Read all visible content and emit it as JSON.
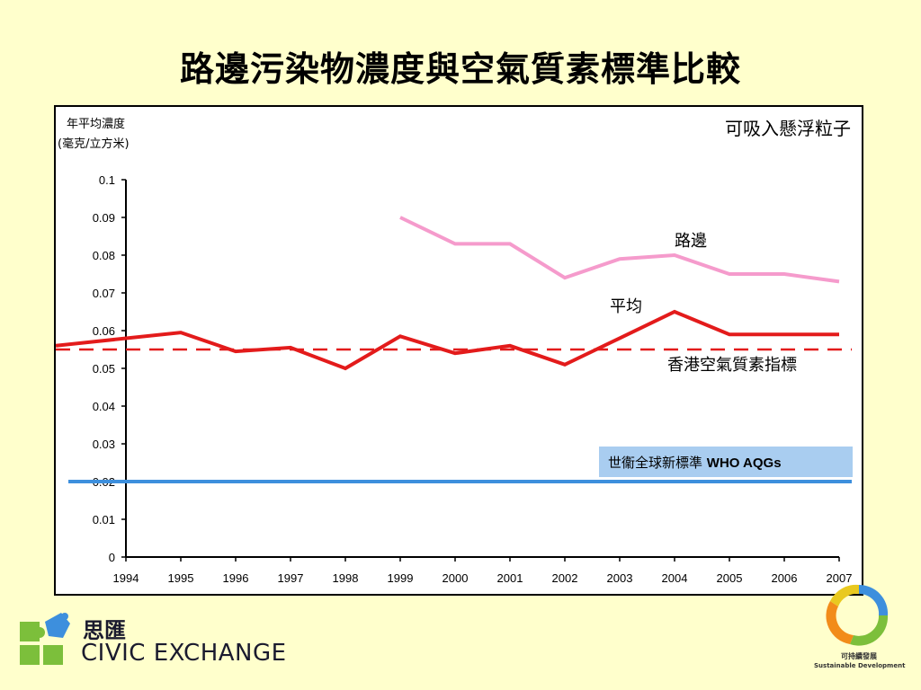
{
  "slide_title": "路邊污染物濃度與空氣質素標準比較",
  "chart_data": {
    "type": "line",
    "pollutant_label": "可吸入懸浮粒子",
    "ylabel_line1": "年平均濃度",
    "ylabel_line2": "(毫克/立方米)",
    "xlabel": "",
    "x": [
      "1994",
      "1995",
      "1996",
      "1997",
      "1998",
      "1999",
      "2000",
      "2001",
      "2002",
      "2003",
      "2004",
      "2005",
      "2006",
      "2007"
    ],
    "ylim": [
      0,
      0.1
    ],
    "yticks": [
      "0",
      "0.01",
      "0.02",
      "0.03",
      "0.04",
      "0.05",
      "0.06",
      "0.07",
      "0.08",
      "0.09",
      "0.1"
    ],
    "series": [
      {
        "name": "路邊",
        "color": "#f59bcc",
        "values": [
          null,
          null,
          null,
          null,
          null,
          0.09,
          0.083,
          0.083,
          0.074,
          0.079,
          0.08,
          0.075,
          0.075,
          0.073
        ]
      },
      {
        "name": "平均",
        "color": "#e31b1b",
        "values": [
          0.056,
          0.0595,
          0.0545,
          0.0555,
          0.05,
          0.0585,
          0.054,
          0.056,
          0.051,
          0.058,
          0.065,
          0.059,
          0.059,
          0.059
        ]
      }
    ],
    "reference_lines": [
      {
        "name": "香港空氣質素指標",
        "value": 0.055,
        "color": "#e31b1b",
        "style": "dashed"
      },
      {
        "name": "世衞全球新標準",
        "name_bold": "WHO AQGs",
        "value": 0.02,
        "color": "#3d8fdd",
        "style": "solid",
        "label_box_color": "#a9cdf0"
      }
    ]
  },
  "logos": {
    "civic_exchange_zh": "思匯",
    "civic_exchange_en": "CIVIC EXCHANGE",
    "sustainable_zh": "可持續發展",
    "sustainable_en": "Sustainable Development"
  }
}
